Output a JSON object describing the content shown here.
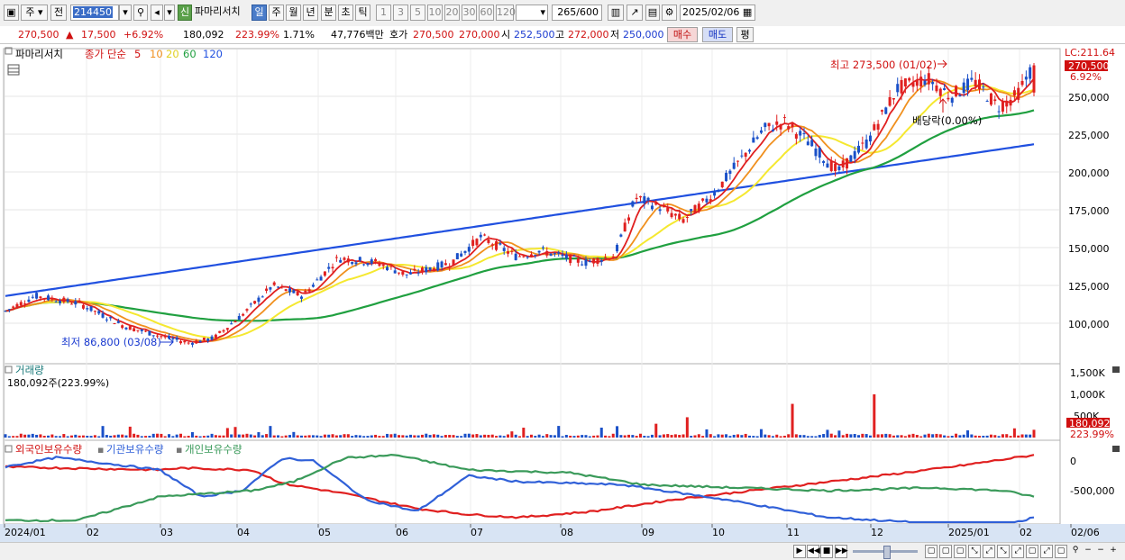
{
  "toolbar": {
    "market": "주",
    "prev": "전",
    "code": "214450",
    "new_badge": "신",
    "name": "파마리서치",
    "periods": [
      "일",
      "주",
      "월",
      "년",
      "분",
      "초",
      "틱"
    ],
    "selected_period": "일",
    "intervals": [
      "1",
      "3",
      "5",
      "10",
      "20",
      "30",
      "60",
      "120"
    ],
    "count": "265",
    "count_max": "/600",
    "date": "2025/02/06"
  },
  "quote": {
    "price": "270,500",
    "change": "17,500",
    "change_pct": "+6.92%",
    "volume": "180,092",
    "vol_ratio": "223.99%",
    "turnover": "1.71%",
    "amount": "47,776백만",
    "hoga_label": "호가",
    "bid": "270,500",
    "ask": "270,000",
    "open_label": "시",
    "open": "252,500",
    "high_label": "고",
    "high": "272,000",
    "low_label": "저",
    "low": "250,000",
    "buy_btn": "매수",
    "sell_btn": "매도",
    "eval_btn": "평"
  },
  "price_panel": {
    "name_tag": "파마리서치",
    "legend_prefix": "종가 단순",
    "ma_labels": [
      "5",
      "10",
      "20",
      "60",
      "120"
    ],
    "lc": "LC:211.64",
    "last_price_tag": "270,500",
    "last_pct_tag": "6.92%",
    "high_note": "최고 273,500 (01/02)",
    "low_note": "최저 86,800 (03/08)",
    "ex_div_note": "배당락(0.00%)",
    "y_ticks": [
      "250,000",
      "225,000",
      "200,000",
      "175,000",
      "150,000",
      "125,000",
      "100,000"
    ]
  },
  "volume_panel": {
    "title": "거래량",
    "value": "180,092주(223.99%)",
    "y_ticks": [
      "1,500K",
      "1,000K",
      "500K"
    ],
    "last_tag": "180,092",
    "last_pct": "223.99%"
  },
  "holding_panel": {
    "series": [
      "외국인보유수량",
      "기관보유수량",
      "개인보유수량"
    ],
    "y_ticks": [
      "0",
      "-500,000"
    ]
  },
  "x_axis": {
    "labels": [
      "2024/01",
      "02",
      "03",
      "04",
      "05",
      "06",
      "07",
      "08",
      "09",
      "10",
      "11",
      "12",
      "2025/01",
      "02",
      "02/06"
    ]
  },
  "colors": {
    "ma5": "#e02020",
    "ma10": "#f0901e",
    "ma20": "#f5e830",
    "ma60": "#20a040",
    "ma120": "#2050e0",
    "up": "#e02020",
    "down": "#1a50c8",
    "foreign": "#e02020",
    "inst": "#3060d8",
    "retail": "#3a9a5a"
  }
}
